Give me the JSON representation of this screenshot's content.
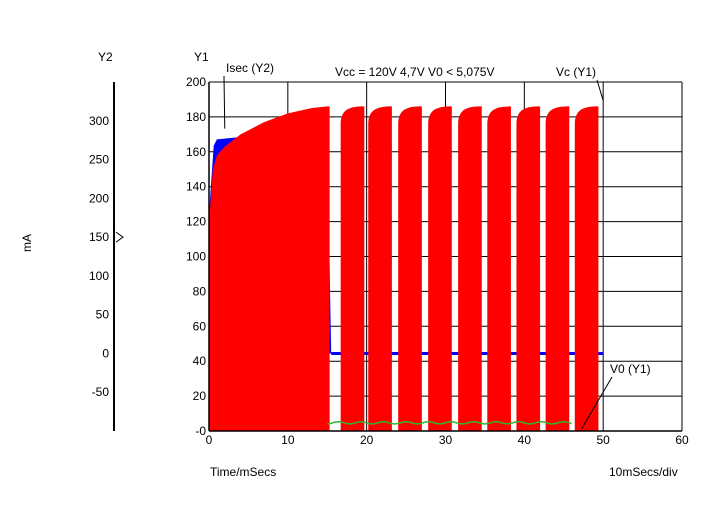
{
  "chart_data": {
    "type": "line",
    "title": "Vcc = 120V   4,7V  V0 < 5,075V",
    "xlabel": "Time/mSecs",
    "x_div_label": "10mSecs/div",
    "y1_axis_title": "Y1",
    "y2_axis_title": "Y2",
    "y2_unit_label": "mA",
    "xlim": [
      0,
      60
    ],
    "y1lim": [
      0,
      200
    ],
    "y2lim": [
      -100,
      350
    ],
    "x_ticks": [
      "0",
      "10",
      "20",
      "30",
      "40",
      "50",
      "60"
    ],
    "y1_ticks": [
      "-0",
      "20",
      "40",
      "60",
      "80",
      "100",
      "120",
      "140",
      "160",
      "180",
      "200"
    ],
    "y2_ticks": [
      "-50",
      "0",
      "50",
      "100",
      "150",
      "200",
      "250",
      "300"
    ],
    "y2_marker_value": 150,
    "grid": true,
    "colors": {
      "vc": "#ff0000",
      "isec": "#0000ff",
      "v0": "#2db82d"
    },
    "series": [
      {
        "name": "Vc (Y1)",
        "axis": "y1",
        "charging": {
          "x_start": 0,
          "x_end": 15.3,
          "values": [
            [
              0,
              120
            ],
            [
              0.5,
              150
            ],
            [
              1,
              158
            ],
            [
              2,
              163
            ],
            [
              4,
              170
            ],
            [
              7,
              177
            ],
            [
              10,
              182
            ],
            [
              13,
              185
            ],
            [
              15,
              186
            ]
          ]
        },
        "pulse_starts": [
          16.7,
          20.2,
          24.0,
          27.8,
          31.6,
          35.3,
          39.0,
          42.7,
          46.4
        ],
        "pulse_width": 3.0,
        "pulse_peak": 186,
        "final_peak": 186
      },
      {
        "name": "Isec (Y2)",
        "axis": "y2",
        "values": [
          [
            0,
            180
          ],
          [
            0.6,
            268
          ],
          [
            1,
            276
          ],
          [
            5,
            280
          ],
          [
            10,
            280
          ],
          [
            15,
            279
          ],
          [
            15.5,
            0
          ],
          [
            60,
            0
          ]
        ],
        "spikes": [
          {
            "x": 25.0,
            "top": 15
          },
          {
            "x": 36.0,
            "top": 150
          }
        ]
      },
      {
        "name": "V0 (Y1)",
        "axis": "y1",
        "values": [
          [
            15,
            4.5
          ],
          [
            20,
            4.8
          ],
          [
            25,
            4.6
          ],
          [
            30,
            4.9
          ],
          [
            35,
            4.7
          ],
          [
            40,
            4.8
          ],
          [
            46,
            4.9
          ]
        ]
      }
    ],
    "annotations": [
      {
        "text": "Isec (Y2)",
        "points_to": [
          2,
          175
        ]
      },
      {
        "text": "Vc (Y1)",
        "points_to": [
          50,
          186
        ]
      },
      {
        "text": "V0 (Y1)",
        "points_to": [
          47,
          0
        ]
      }
    ]
  }
}
